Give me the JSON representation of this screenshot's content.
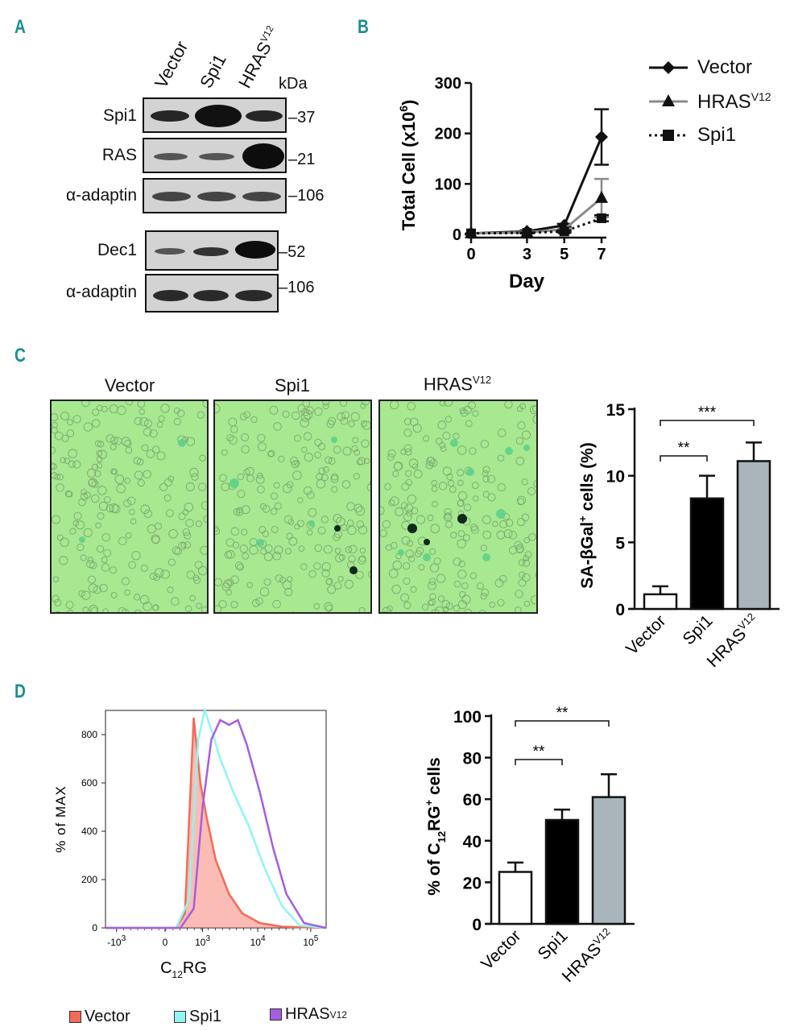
{
  "panels": {
    "a": "A",
    "b": "B",
    "c": "C",
    "d": "D"
  },
  "blot": {
    "lanes": [
      "Vector",
      "Spi1",
      "HRAS",
      "V12"
    ],
    "kda_label": "kDa",
    "rows": [
      {
        "label": "Spi1",
        "mw": "37"
      },
      {
        "label": "RAS",
        "mw": "21"
      },
      {
        "label": "α-adaptin",
        "mw": "106"
      },
      {
        "label": "Dec1",
        "mw": "52"
      },
      {
        "label": "α-adaptin",
        "mw": "106"
      }
    ]
  },
  "growth_legend": {
    "vector": "Vector",
    "hras": "HRAS",
    "hras_sup": "V12",
    "spi1": "Spi1"
  },
  "micrographs": {
    "titles": [
      "Vector",
      "Spi1",
      "HRAS"
    ],
    "hras_sup": "V12"
  },
  "flow_legend": {
    "vector": "Vector",
    "spi1": "Spi1",
    "hras": "HRAS ",
    "hras_sup": "V12",
    "colors": {
      "vector": "#f36b58",
      "spi1": "#8ff5f0",
      "hras": "#a45ee0"
    }
  },
  "chart_data": [
    {
      "id": "growth",
      "type": "line",
      "title": "",
      "xlabel": "Day",
      "ylabel": "Total Cell (x10^6)",
      "x": [
        0,
        3,
        5,
        7
      ],
      "xlim": [
        0,
        7
      ],
      "ylim": [
        0,
        300
      ],
      "yticks": [
        0,
        100,
        200,
        300
      ],
      "xticks": [
        0,
        3,
        5,
        7
      ],
      "series": [
        {
          "name": "Vector",
          "values": [
            2,
            6,
            18,
            193
          ],
          "error": [
            0,
            2,
            3,
            55
          ],
          "color": "#111111",
          "marker": "diamond",
          "dash": "solid"
        },
        {
          "name": "HRAS V12",
          "values": [
            2,
            4,
            10,
            72
          ],
          "error": [
            0,
            2,
            2,
            38
          ],
          "color": "#8a8a8a",
          "marker": "triangle",
          "dash": "solid"
        },
        {
          "name": "Spi1",
          "values": [
            2,
            3,
            6,
            32
          ],
          "error": [
            0,
            1,
            2,
            6
          ],
          "color": "#111111",
          "marker": "square",
          "dash": "dotted"
        }
      ]
    },
    {
      "id": "sabgal",
      "type": "bar",
      "ylabel": "SA-βGal+ cells (%)",
      "ylabel_main": "SA-βGal",
      "ylabel_sup": "+",
      "ylabel_tail": " cells (%)",
      "categories": [
        "Vector",
        "Spi1",
        "HRAS"
      ],
      "category_sup": [
        "",
        "",
        "V12"
      ],
      "values": [
        1.1,
        8.3,
        11.1
      ],
      "error": [
        0.6,
        1.7,
        1.4
      ],
      "colors": [
        "#ffffff",
        "#000000",
        "#aab5bb"
      ],
      "ylim": [
        0,
        15
      ],
      "yticks": [
        0,
        5,
        10,
        15
      ],
      "significance": [
        {
          "from": 0,
          "to": 1,
          "label": "**"
        },
        {
          "from": 0,
          "to": 2,
          "label": "***"
        }
      ]
    },
    {
      "id": "flow",
      "type": "area",
      "xlabel": "C12RG",
      "xlabel_main": "C",
      "xlabel_sub": "12",
      "xlabel_tail": "RG",
      "ylabel": "% of MAX",
      "yticks": [
        0,
        200,
        400,
        600,
        800
      ],
      "ylim": [
        0,
        900
      ],
      "xticks": [
        {
          "base": "-10",
          "exp": "3"
        },
        {
          "base": "0",
          "exp": ""
        },
        {
          "base": "10",
          "exp": "3"
        },
        {
          "base": "10",
          "exp": "4"
        },
        {
          "base": "10",
          "exp": "5"
        }
      ],
      "series": [
        {
          "name": "Vector",
          "x": [
            0.0,
            0.32,
            0.36,
            0.4,
            0.43,
            0.46,
            0.5,
            0.56,
            0.62,
            0.7,
            0.8,
            1.0
          ],
          "values": [
            0,
            0,
            60,
            870,
            600,
            450,
            280,
            140,
            60,
            20,
            5,
            0
          ]
        },
        {
          "name": "Spi1",
          "x": [
            0.0,
            0.32,
            0.38,
            0.42,
            0.45,
            0.48,
            0.52,
            0.58,
            0.65,
            0.72,
            0.8,
            0.88,
            1.0
          ],
          "values": [
            0,
            0,
            120,
            780,
            900,
            820,
            700,
            560,
            420,
            250,
            90,
            10,
            0
          ]
        },
        {
          "name": "HRAS V12",
          "x": [
            0.0,
            0.34,
            0.4,
            0.44,
            0.48,
            0.52,
            0.56,
            0.6,
            0.64,
            0.7,
            0.76,
            0.82,
            0.9,
            1.0
          ],
          "values": [
            0,
            0,
            80,
            500,
            780,
            860,
            840,
            860,
            760,
            560,
            330,
            140,
            20,
            0
          ]
        }
      ]
    },
    {
      "id": "c12rg",
      "type": "bar",
      "ylabel": "% of C12RG+ cells",
      "ylabel_pre": "% of C",
      "ylabel_sub": "12",
      "ylabel_mid": "RG",
      "ylabel_sup": "+",
      "ylabel_tail": " cells",
      "categories": [
        "Vector",
        "Spi1",
        "HRAS"
      ],
      "category_sup": [
        "",
        "",
        "V12"
      ],
      "values": [
        25,
        50,
        61
      ],
      "error": [
        4.5,
        5,
        11
      ],
      "colors": [
        "#ffffff",
        "#000000",
        "#aab5bb"
      ],
      "ylim": [
        0,
        100
      ],
      "yticks": [
        0,
        20,
        40,
        60,
        80,
        100
      ],
      "significance": [
        {
          "from": 0,
          "to": 1,
          "label": "**"
        },
        {
          "from": 0,
          "to": 2,
          "label": "**"
        }
      ]
    }
  ]
}
